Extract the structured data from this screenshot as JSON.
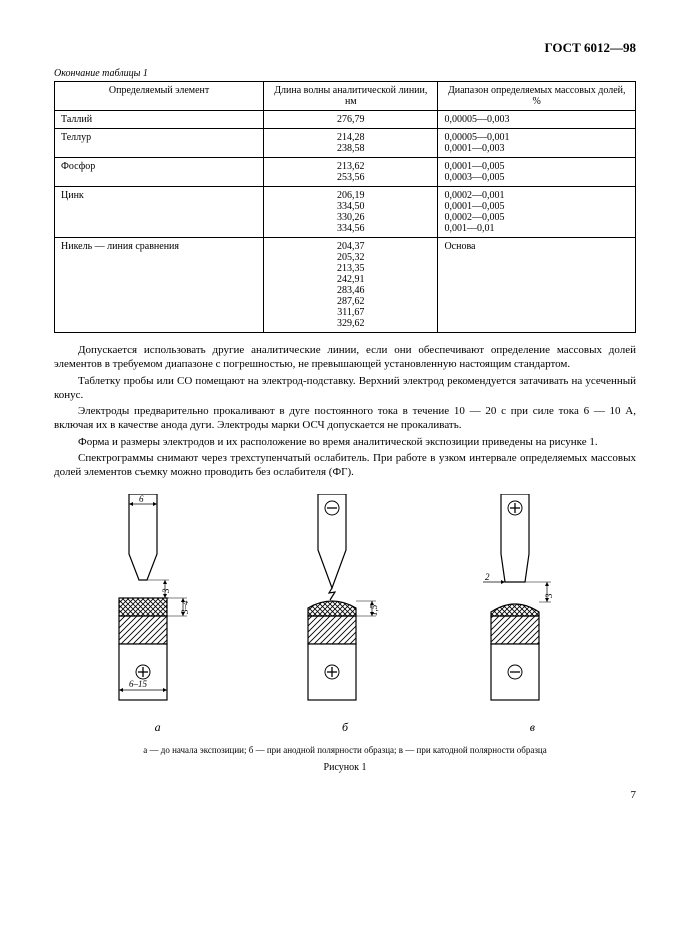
{
  "doc_code": "ГОСТ 6012—98",
  "table_caption": "Окончание таблицы 1",
  "table": {
    "headers": [
      "Определяемый элемент",
      "Длина волны аналитической линии, нм",
      "Диапазон определяемых массовых долей, %"
    ],
    "rows": [
      {
        "name": "Таллий",
        "waves": [
          "276,79"
        ],
        "ranges": [
          "0,00005—0,003"
        ]
      },
      {
        "name": "Теллур",
        "waves": [
          "214,28",
          "238,58"
        ],
        "ranges": [
          "0,00005—0,001",
          "0,0001—0,003"
        ]
      },
      {
        "name": "Фосфор",
        "waves": [
          "213,62",
          "253,56"
        ],
        "ranges": [
          "0,0001—0,005",
          "0,0003—0,005"
        ]
      },
      {
        "name": "Цинк",
        "waves": [
          "206,19",
          "334,50",
          "330,26",
          "334,56"
        ],
        "ranges": [
          "0,0002—0,001",
          "0,0001—0,005",
          "0,0002—0,005",
          "0,001—0,01"
        ]
      },
      {
        "name": "Никель — линия сравнения",
        "waves": [
          "204,37",
          "205,32",
          "213,35",
          "242,91",
          "283,46",
          "287,62",
          "311,67",
          "329,62"
        ],
        "ranges": [
          "Основа"
        ]
      }
    ]
  },
  "paragraphs": [
    "Допускается использовать другие аналитические линии, если они обеспечивают определение массовых долей элементов в требуемом диапазоне с погрешностью, не превышающей установленную настоящим стандартом.",
    "Таблетку пробы или СО помещают на электрод-подставку. Верхний электрод рекомендуется затачивать на усеченный конус.",
    "Электроды предварительно прокаливают в дуге постоянного тока в течение 10 — 20 с при силе тока 6 — 10 А, включая их в качестве анода дуги. Электроды марки ОСЧ допускается не прокаливать.",
    "Форма и размеры электродов и их расположение во время аналитической экспозиции приведены на рисунке 1.",
    "Спектрограммы снимают через трехступенчатый ослабитель. При работе в узком интервале определяемых массовых долей элементов съемку можно проводить без ослабителя (ФГ)."
  ],
  "figure": {
    "sublabels": {
      "a": "а",
      "b": "б",
      "c": "в"
    },
    "dims": {
      "top_width": "6",
      "gap_a": "3",
      "tablet_h": "3–4",
      "base_width": "6–15",
      "tablet_b": "1,5",
      "gap_c_h": "2",
      "gap_c_v": "3"
    },
    "caption_small": "а — до начала экспозиции; б — при анодной полярности образца; в — при катодной полярности образца",
    "title": "Рисунок 1"
  },
  "page_number": "7",
  "style": {
    "font_body_pt": 11,
    "font_table_pt": 10,
    "font_caption_pt": 9,
    "line_color": "#000000",
    "hatch_color": "#000000",
    "background": "#ffffff"
  }
}
